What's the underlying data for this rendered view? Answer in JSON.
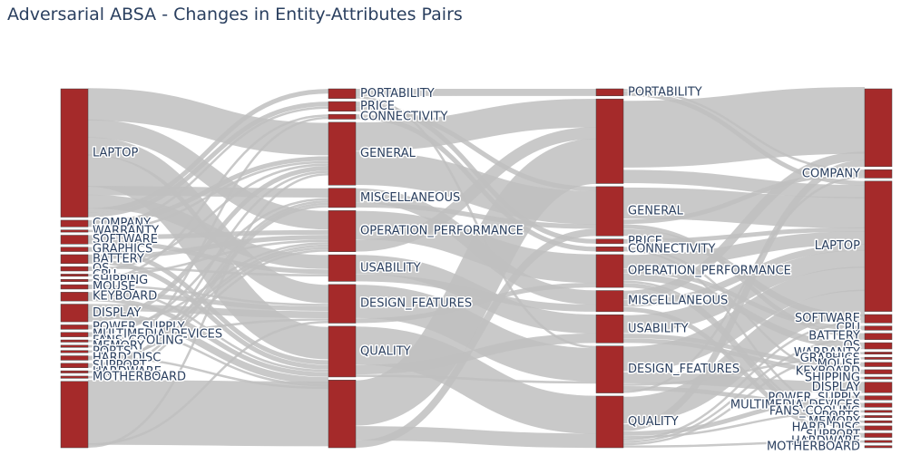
{
  "title": "Adversarial ABSA - Changes in Entity-Attributes Pairs",
  "colors": {
    "node": "#a52a2a",
    "link": "#c0c0c0",
    "title": "#2a3f5f",
    "label": "#2a3f5f"
  },
  "chart_data": {
    "type": "sankey",
    "title": "Adversarial ABSA - Changes in Entity-Attributes Pairs",
    "columns": [
      [
        "LAPTOP",
        "COMPANY",
        "WARRANTY",
        "SOFTWARE",
        "GRAPHICS",
        "BATTERY",
        "OS",
        "CPU",
        "SHIPPING",
        "MOUSE",
        "KEYBOARD",
        "DISPLAY",
        "POWER_SUPPLY",
        "MULTIMEDIA_DEVICES",
        "FANS_COOLING",
        "MEMORY",
        "PORTS",
        "HARD_DISC",
        "SUPPORT",
        "HARDWARE",
        "MOTHERBOARD",
        ""
      ],
      [
        "PORTABILITY",
        "PRICE",
        "CONNECTIVITY",
        "GENERAL",
        "MISCELLANEOUS",
        "OPERATION_PERFORMANCE",
        "USABILITY",
        "DESIGN_FEATURES",
        "QUALITY",
        ""
      ],
      [
        "PORTABILITY",
        "",
        "GENERAL",
        "PRICE",
        "CONNECTIVITY",
        "OPERATION_PERFORMANCE",
        "MISCELLANEOUS",
        "USABILITY",
        "DESIGN_FEATURES",
        "QUALITY"
      ],
      [
        "",
        "COMPANY",
        "LAPTOP",
        "SOFTWARE",
        "CPU",
        "BATTERY",
        "OS",
        "WARRANTY",
        "GRAPHICS",
        "MOUSE",
        "KEYBOARD",
        "SHIPPING",
        "DISPLAY",
        "POWER_SUPPLY",
        "MULTIMEDIA_DEVICES",
        "FANS_COOLING",
        "PORTS",
        "MEMORY",
        "HARD_DISC",
        "SUPPORT",
        "HARDWARE",
        "MOTHERBOARD"
      ]
    ],
    "column_values": [
      [
        58,
        3,
        1,
        4,
        2,
        4,
        2,
        1,
        1,
        2,
        4,
        8,
        2,
        2,
        1,
        1,
        1,
        2,
        2,
        1,
        1,
        30
      ],
      [
        4,
        4,
        2,
        26,
        8,
        17,
        11,
        16,
        21,
        28
      ],
      [
        3,
        36,
        21,
        2,
        2,
        14,
        9,
        12,
        20,
        22
      ],
      [
        37,
        4,
        62,
        4,
        2,
        3,
        3,
        1,
        1,
        2,
        2,
        1,
        5,
        2,
        2,
        1,
        1,
        1,
        2,
        2,
        1,
        1
      ]
    ],
    "links": [
      {
        "from": [
          0,
          0
        ],
        "to": [
          1,
          3
        ],
        "value": 14
      },
      {
        "from": [
          0,
          0
        ],
        "to": [
          1,
          5
        ],
        "value": 8
      },
      {
        "from": [
          0,
          0
        ],
        "to": [
          1,
          7
        ],
        "value": 8
      },
      {
        "from": [
          0,
          0
        ],
        "to": [
          1,
          8
        ],
        "value": 14
      },
      {
        "from": [
          0,
          0
        ],
        "to": [
          1,
          4
        ],
        "value": 4
      },
      {
        "from": [
          0,
          0
        ],
        "to": [
          1,
          6
        ],
        "value": 6
      },
      {
        "from": [
          0,
          0
        ],
        "to": [
          1,
          0
        ],
        "value": 2
      },
      {
        "from": [
          0,
          0
        ],
        "to": [
          1,
          1
        ],
        "value": 2
      },
      {
        "from": [
          0,
          1
        ],
        "to": [
          1,
          3
        ],
        "value": 2
      },
      {
        "from": [
          0,
          1
        ],
        "to": [
          1,
          1
        ],
        "value": 1
      },
      {
        "from": [
          0,
          2
        ],
        "to": [
          1,
          3
        ],
        "value": 1
      },
      {
        "from": [
          0,
          3
        ],
        "to": [
          1,
          5
        ],
        "value": 2
      },
      {
        "from": [
          0,
          3
        ],
        "to": [
          1,
          6
        ],
        "value": 2
      },
      {
        "from": [
          0,
          4
        ],
        "to": [
          1,
          8
        ],
        "value": 2
      },
      {
        "from": [
          0,
          5
        ],
        "to": [
          1,
          5
        ],
        "value": 2
      },
      {
        "from": [
          0,
          5
        ],
        "to": [
          1,
          8
        ],
        "value": 2
      },
      {
        "from": [
          0,
          6
        ],
        "to": [
          1,
          6
        ],
        "value": 1
      },
      {
        "from": [
          0,
          6
        ],
        "to": [
          1,
          3
        ],
        "value": 1
      },
      {
        "from": [
          0,
          7
        ],
        "to": [
          1,
          5
        ],
        "value": 1
      },
      {
        "from": [
          0,
          8
        ],
        "to": [
          1,
          2
        ],
        "value": 1
      },
      {
        "from": [
          0,
          9
        ],
        "to": [
          1,
          7
        ],
        "value": 1
      },
      {
        "from": [
          0,
          9
        ],
        "to": [
          1,
          8
        ],
        "value": 1
      },
      {
        "from": [
          0,
          10
        ],
        "to": [
          1,
          7
        ],
        "value": 2
      },
      {
        "from": [
          0,
          10
        ],
        "to": [
          1,
          8
        ],
        "value": 2
      },
      {
        "from": [
          0,
          11
        ],
        "to": [
          1,
          7
        ],
        "value": 3
      },
      {
        "from": [
          0,
          11
        ],
        "to": [
          1,
          8
        ],
        "value": 3
      },
      {
        "from": [
          0,
          11
        ],
        "to": [
          1,
          3
        ],
        "value": 2
      },
      {
        "from": [
          0,
          12
        ],
        "to": [
          1,
          8
        ],
        "value": 1
      },
      {
        "from": [
          0,
          12
        ],
        "to": [
          1,
          5
        ],
        "value": 1
      },
      {
        "from": [
          0,
          13
        ],
        "to": [
          1,
          4
        ],
        "value": 1
      },
      {
        "from": [
          0,
          13
        ],
        "to": [
          1,
          7
        ],
        "value": 1
      },
      {
        "from": [
          0,
          14
        ],
        "to": [
          1,
          5
        ],
        "value": 1
      },
      {
        "from": [
          0,
          15
        ],
        "to": [
          1,
          5
        ],
        "value": 1
      },
      {
        "from": [
          0,
          16
        ],
        "to": [
          1,
          2
        ],
        "value": 1
      },
      {
        "from": [
          0,
          17
        ],
        "to": [
          1,
          8
        ],
        "value": 1
      },
      {
        "from": [
          0,
          17
        ],
        "to": [
          1,
          5
        ],
        "value": 1
      },
      {
        "from": [
          0,
          18
        ],
        "to": [
          1,
          4
        ],
        "value": 1
      },
      {
        "from": [
          0,
          18
        ],
        "to": [
          1,
          3
        ],
        "value": 1
      },
      {
        "from": [
          0,
          19
        ],
        "to": [
          1,
          4
        ],
        "value": 1
      },
      {
        "from": [
          0,
          20
        ],
        "to": [
          1,
          4
        ],
        "value": 1
      },
      {
        "from": [
          0,
          21
        ],
        "to": [
          1,
          9
        ],
        "value": 28
      },
      {
        "from": [
          0,
          21
        ],
        "to": [
          1,
          7
        ],
        "value": 1
      },
      {
        "from": [
          0,
          21
        ],
        "to": [
          1,
          3
        ],
        "value": 1
      },
      {
        "from": [
          1,
          0
        ],
        "to": [
          2,
          0
        ],
        "value": 3
      },
      {
        "from": [
          1,
          0
        ],
        "to": [
          2,
          8
        ],
        "value": 1
      },
      {
        "from": [
          1,
          1
        ],
        "to": [
          2,
          3
        ],
        "value": 2
      },
      {
        "from": [
          1,
          1
        ],
        "to": [
          2,
          2
        ],
        "value": 2
      },
      {
        "from": [
          1,
          2
        ],
        "to": [
          2,
          4
        ],
        "value": 2
      },
      {
        "from": [
          1,
          3
        ],
        "to": [
          2,
          1
        ],
        "value": 12
      },
      {
        "from": [
          1,
          3
        ],
        "to": [
          2,
          2
        ],
        "value": 14
      },
      {
        "from": [
          1,
          4
        ],
        "to": [
          2,
          6
        ],
        "value": 6
      },
      {
        "from": [
          1,
          4
        ],
        "to": [
          2,
          2
        ],
        "value": 2
      },
      {
        "from": [
          1,
          5
        ],
        "to": [
          2,
          5
        ],
        "value": 12
      },
      {
        "from": [
          1,
          5
        ],
        "to": [
          2,
          1
        ],
        "value": 5
      },
      {
        "from": [
          1,
          6
        ],
        "to": [
          2,
          7
        ],
        "value": 8
      },
      {
        "from": [
          1,
          6
        ],
        "to": [
          2,
          6
        ],
        "value": 3
      },
      {
        "from": [
          1,
          7
        ],
        "to": [
          2,
          8
        ],
        "value": 14
      },
      {
        "from": [
          1,
          7
        ],
        "to": [
          2,
          5
        ],
        "value": 2
      },
      {
        "from": [
          1,
          8
        ],
        "to": [
          2,
          9
        ],
        "value": 16
      },
      {
        "from": [
          1,
          8
        ],
        "to": [
          2,
          7
        ],
        "value": 4
      },
      {
        "from": [
          1,
          8
        ],
        "to": [
          2,
          8
        ],
        "value": 1
      },
      {
        "from": [
          1,
          9
        ],
        "to": [
          2,
          1
        ],
        "value": 19
      },
      {
        "from": [
          1,
          9
        ],
        "to": [
          2,
          9
        ],
        "value": 6
      },
      {
        "from": [
          1,
          9
        ],
        "to": [
          2,
          2
        ],
        "value": 3
      },
      {
        "from": [
          2,
          0
        ],
        "to": [
          3,
          1
        ],
        "value": 1
      },
      {
        "from": [
          2,
          0
        ],
        "to": [
          3,
          2
        ],
        "value": 2
      },
      {
        "from": [
          2,
          1
        ],
        "to": [
          3,
          0
        ],
        "value": 30
      },
      {
        "from": [
          2,
          1
        ],
        "to": [
          3,
          2
        ],
        "value": 6
      },
      {
        "from": [
          2,
          2
        ],
        "to": [
          3,
          2
        ],
        "value": 14
      },
      {
        "from": [
          2,
          2
        ],
        "to": [
          3,
          1
        ],
        "value": 2
      },
      {
        "from": [
          2,
          2
        ],
        "to": [
          3,
          5
        ],
        "value": 2
      },
      {
        "from": [
          2,
          2
        ],
        "to": [
          3,
          3
        ],
        "value": 3
      },
      {
        "from": [
          2,
          3
        ],
        "to": [
          3,
          2
        ],
        "value": 2
      },
      {
        "from": [
          2,
          4
        ],
        "to": [
          3,
          11
        ],
        "value": 1
      },
      {
        "from": [
          2,
          4
        ],
        "to": [
          3,
          16
        ],
        "value": 1
      },
      {
        "from": [
          2,
          5
        ],
        "to": [
          3,
          2
        ],
        "value": 6
      },
      {
        "from": [
          2,
          5
        ],
        "to": [
          3,
          4
        ],
        "value": 2
      },
      {
        "from": [
          2,
          5
        ],
        "to": [
          3,
          6
        ],
        "value": 3
      },
      {
        "from": [
          2,
          5
        ],
        "to": [
          3,
          17
        ],
        "value": 1
      },
      {
        "from": [
          2,
          5
        ],
        "to": [
          3,
          18
        ],
        "value": 2
      },
      {
        "from": [
          2,
          6
        ],
        "to": [
          3,
          0
        ],
        "value": 4
      },
      {
        "from": [
          2,
          6
        ],
        "to": [
          3,
          2
        ],
        "value": 3
      },
      {
        "from": [
          2,
          6
        ],
        "to": [
          3,
          19
        ],
        "value": 2
      },
      {
        "from": [
          2,
          7
        ],
        "to": [
          3,
          2
        ],
        "value": 8
      },
      {
        "from": [
          2,
          7
        ],
        "to": [
          3,
          9
        ],
        "value": 2
      },
      {
        "from": [
          2,
          7
        ],
        "to": [
          3,
          10
        ],
        "value": 2
      },
      {
        "from": [
          2,
          8
        ],
        "to": [
          3,
          2
        ],
        "value": 11
      },
      {
        "from": [
          2,
          8
        ],
        "to": [
          3,
          12
        ],
        "value": 5
      },
      {
        "from": [
          2,
          8
        ],
        "to": [
          3,
          8
        ],
        "value": 1
      },
      {
        "from": [
          2,
          8
        ],
        "to": [
          3,
          14
        ],
        "value": 2
      },
      {
        "from": [
          2,
          8
        ],
        "to": [
          3,
          1
        ],
        "value": 1
      },
      {
        "from": [
          2,
          9
        ],
        "to": [
          3,
          2
        ],
        "value": 12
      },
      {
        "from": [
          2,
          9
        ],
        "to": [
          3,
          0
        ],
        "value": 3
      },
      {
        "from": [
          2,
          9
        ],
        "to": [
          3,
          13
        ],
        "value": 2
      },
      {
        "from": [
          2,
          9
        ],
        "to": [
          3,
          15
        ],
        "value": 1
      },
      {
        "from": [
          2,
          9
        ],
        "to": [
          3,
          3
        ],
        "value": 1
      },
      {
        "from": [
          2,
          9
        ],
        "to": [
          3,
          5
        ],
        "value": 1
      },
      {
        "from": [
          2,
          9
        ],
        "to": [
          3,
          7
        ],
        "value": 1
      },
      {
        "from": [
          2,
          9
        ],
        "to": [
          3,
          20
        ],
        "value": 1
      }
    ]
  }
}
